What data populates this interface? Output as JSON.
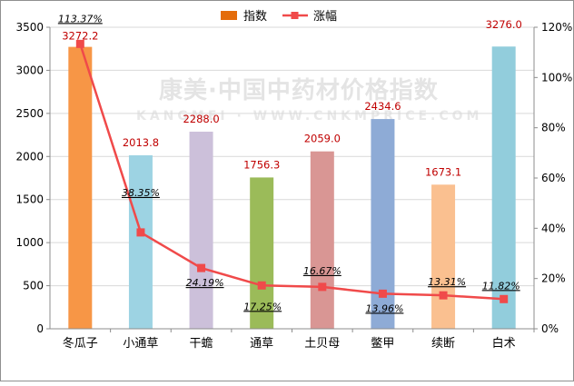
{
  "watermark": {
    "line1": "康美·中国中药材价格指数",
    "line2": "KANGMEI · WWW.CNKMPRICE.COM"
  },
  "colors": {
    "line": "#f04a4a",
    "bar_label": "#c00000",
    "legend_bar": "#e46c0a"
  },
  "chart_data": {
    "type": "bar",
    "categories": [
      "冬瓜子",
      "小通草",
      "干蟾",
      "通草",
      "土贝母",
      "鳖甲",
      "续断",
      "白术"
    ],
    "series": [
      {
        "name": "指数",
        "type": "bar",
        "axis": "left",
        "values": [
          3272.2,
          2013.8,
          2288.0,
          1756.3,
          2059.0,
          2434.6,
          1673.1,
          3276.0
        ],
        "labels": [
          "3272.2",
          "2013.8",
          "2288.0",
          "1756.3",
          "2059.0",
          "2434.6",
          "1673.1",
          "3276.0"
        ],
        "colors": [
          "#f79646",
          "#9dd3e3",
          "#ccc0da",
          "#9bbb59",
          "#d99694",
          "#8eabd6",
          "#fac090",
          "#92cddc"
        ]
      },
      {
        "name": "涨幅",
        "type": "line",
        "axis": "right",
        "values": [
          113.37,
          38.35,
          24.19,
          17.25,
          16.67,
          13.96,
          13.31,
          11.82
        ],
        "labels": [
          "113.37%",
          "38.35%",
          "24.19%",
          "17.25%",
          "16.67%",
          "13.96%",
          "13.31%",
          "11.82%"
        ]
      }
    ],
    "y_left": {
      "range": [
        0,
        3500
      ],
      "ticks": [
        "0",
        "500",
        "1000",
        "1500",
        "2000",
        "2500",
        "3000",
        "3500"
      ]
    },
    "y_right": {
      "range": [
        0,
        120
      ],
      "unit": "%",
      "ticks": [
        "0%",
        "20%",
        "40%",
        "60%",
        "80%",
        "100%",
        "120%"
      ]
    },
    "grid": true,
    "legend_position": "top-center"
  }
}
